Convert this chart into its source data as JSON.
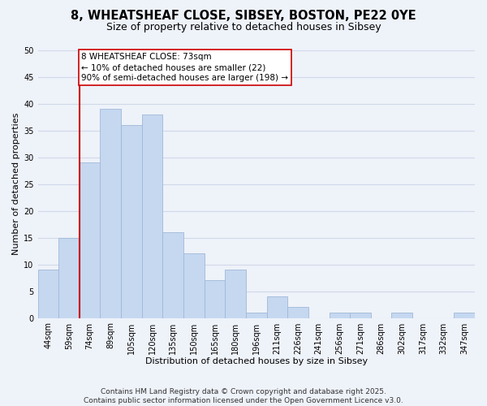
{
  "title_line1": "8, WHEATSHEAF CLOSE, SIBSEY, BOSTON, PE22 0YE",
  "title_line2": "Size of property relative to detached houses in Sibsey",
  "xlabel": "Distribution of detached houses by size in Sibsey",
  "ylabel": "Number of detached properties",
  "bar_labels": [
    "44sqm",
    "59sqm",
    "74sqm",
    "89sqm",
    "105sqm",
    "120sqm",
    "135sqm",
    "150sqm",
    "165sqm",
    "180sqm",
    "196sqm",
    "211sqm",
    "226sqm",
    "241sqm",
    "256sqm",
    "271sqm",
    "286sqm",
    "302sqm",
    "317sqm",
    "332sqm",
    "347sqm"
  ],
  "bar_values": [
    9,
    15,
    29,
    39,
    36,
    38,
    16,
    12,
    7,
    9,
    1,
    4,
    2,
    0,
    1,
    1,
    0,
    1,
    0,
    0,
    1
  ],
  "bar_color": "#c5d8f0",
  "bar_edge_color": "#a0b8d8",
  "grid_color": "#d0d8e8",
  "background_color": "#eef2f9",
  "vline_x": 2,
  "vline_color": "#cc0000",
  "annotation_line1": "8 WHEATSHEAF CLOSE: 73sqm",
  "annotation_line2": "← 10% of detached houses are smaller (22)",
  "annotation_line3": "90% of semi-detached houses are larger (198) →",
  "annotation_box_color": "#ffffff",
  "annotation_box_edge": "#cc0000",
  "ylim": [
    0,
    50
  ],
  "yticks": [
    0,
    5,
    10,
    15,
    20,
    25,
    30,
    35,
    40,
    45,
    50
  ],
  "footnote": "Contains HM Land Registry data © Crown copyright and database right 2025.\nContains public sector information licensed under the Open Government Licence v3.0.",
  "title_fontsize": 10.5,
  "subtitle_fontsize": 9,
  "axis_label_fontsize": 8,
  "tick_fontsize": 7,
  "annotation_fontsize": 7.5,
  "footnote_fontsize": 6.5
}
